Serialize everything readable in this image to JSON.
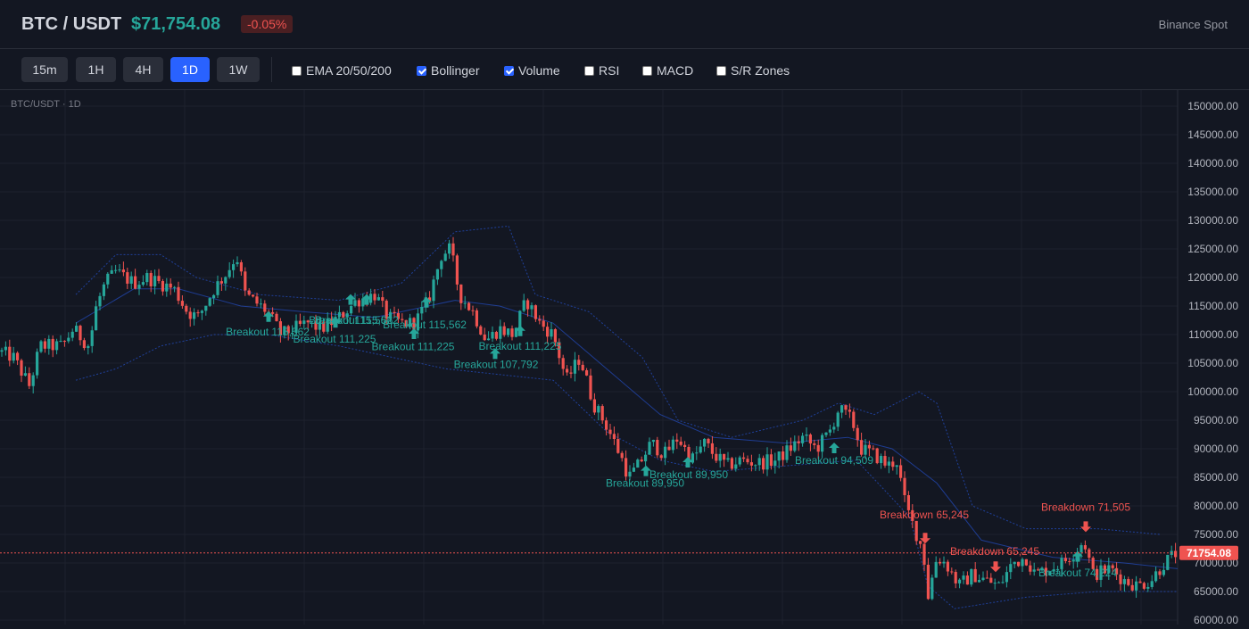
{
  "header": {
    "symbol": "BTC / USDT",
    "price": "$71,754.08",
    "change": "-0.05%",
    "exchange": "Binance Spot"
  },
  "toolbar": {
    "timeframes": [
      {
        "label": "15m",
        "active": false
      },
      {
        "label": "1H",
        "active": false
      },
      {
        "label": "4H",
        "active": false
      },
      {
        "label": "1D",
        "active": true
      },
      {
        "label": "1W",
        "active": false
      }
    ],
    "indicators": [
      {
        "label": "EMA 20/50/200",
        "checked": false
      },
      {
        "label": "Bollinger",
        "checked": true
      },
      {
        "label": "Volume",
        "checked": true
      },
      {
        "label": "RSI",
        "checked": false
      },
      {
        "label": "MACD",
        "checked": false
      },
      {
        "label": "S/R Zones",
        "checked": false
      }
    ]
  },
  "chart_label": "BTC/USDT · 1D",
  "colors": {
    "up": "#26a69a",
    "down": "#ef5350",
    "band": "#2962ff",
    "background": "#131722"
  },
  "chart_data": {
    "type": "candlestick",
    "title": "BTC/USDT · 1D",
    "ylim": [
      60000,
      152000
    ],
    "y_ticks": [
      "150000.00",
      "145000.00",
      "140000.00",
      "135000.00",
      "130000.00",
      "125000.00",
      "120000.00",
      "115000.00",
      "110000.00",
      "105000.00",
      "100000.00",
      "95000.00",
      "90000.00",
      "85000.00",
      "80000.00",
      "75000.00",
      "70000.00",
      "65000.00",
      "60000.00"
    ],
    "last_price": 71754.08,
    "last_price_label": "71754.08",
    "close_path": [
      [
        0,
        107000
      ],
      [
        15,
        106000
      ],
      [
        33,
        101000
      ],
      [
        45,
        108000
      ],
      [
        70,
        108000
      ],
      [
        82,
        111000
      ],
      [
        100,
        108000
      ],
      [
        108,
        115000
      ],
      [
        118,
        119000
      ],
      [
        130,
        121000
      ],
      [
        150,
        119000
      ],
      [
        165,
        120000
      ],
      [
        180,
        119000
      ],
      [
        195,
        118000
      ],
      [
        210,
        114000
      ],
      [
        222,
        113000
      ],
      [
        240,
        118000
      ],
      [
        255,
        121000
      ],
      [
        265,
        124000
      ],
      [
        275,
        117000
      ],
      [
        300,
        114000
      ],
      [
        315,
        110000
      ],
      [
        330,
        111000
      ],
      [
        345,
        112000
      ],
      [
        360,
        111000
      ],
      [
        380,
        113000
      ],
      [
        400,
        116000
      ],
      [
        420,
        117000
      ],
      [
        435,
        113000
      ],
      [
        450,
        112000
      ],
      [
        465,
        112000
      ],
      [
        480,
        116000
      ],
      [
        495,
        124000
      ],
      [
        505,
        125000
      ],
      [
        515,
        117000
      ],
      [
        530,
        114000
      ],
      [
        545,
        109000
      ],
      [
        560,
        111000
      ],
      [
        575,
        110000
      ],
      [
        590,
        116000
      ],
      [
        605,
        112000
      ],
      [
        620,
        110000
      ],
      [
        635,
        102000
      ],
      [
        650,
        106000
      ],
      [
        665,
        98000
      ],
      [
        680,
        94000
      ],
      [
        695,
        89000
      ],
      [
        705,
        85000
      ],
      [
        715,
        87000
      ],
      [
        730,
        91000
      ],
      [
        745,
        89000
      ],
      [
        760,
        92000
      ],
      [
        775,
        88000
      ],
      [
        790,
        91000
      ],
      [
        800,
        89000
      ],
      [
        815,
        87000
      ],
      [
        830,
        88000
      ],
      [
        850,
        87500
      ],
      [
        870,
        88000
      ],
      [
        885,
        90000
      ],
      [
        900,
        92000
      ],
      [
        915,
        90000
      ],
      [
        930,
        93000
      ],
      [
        940,
        97000
      ],
      [
        955,
        95000
      ],
      [
        965,
        90000
      ],
      [
        980,
        89000
      ],
      [
        995,
        87000
      ],
      [
        1005,
        88000
      ],
      [
        1015,
        80000
      ],
      [
        1025,
        76000
      ],
      [
        1035,
        72000
      ],
      [
        1040,
        64000
      ],
      [
        1050,
        71000
      ],
      [
        1060,
        70000
      ],
      [
        1075,
        66000
      ],
      [
        1090,
        68000
      ],
      [
        1105,
        67000
      ],
      [
        1120,
        66000
      ],
      [
        1135,
        70000
      ],
      [
        1150,
        71000
      ],
      [
        1160,
        68000
      ],
      [
        1175,
        69000
      ],
      [
        1190,
        70000
      ],
      [
        1205,
        72000
      ],
      [
        1215,
        74000
      ],
      [
        1225,
        68000
      ],
      [
        1245,
        69000
      ],
      [
        1260,
        67000
      ],
      [
        1275,
        66000
      ],
      [
        1290,
        67000
      ],
      [
        1305,
        70000
      ],
      [
        1320,
        72000
      ]
    ],
    "bollinger_upper": [
      [
        85,
        117000
      ],
      [
        130,
        124000
      ],
      [
        180,
        124000
      ],
      [
        220,
        120000
      ],
      [
        290,
        117000
      ],
      [
        380,
        116000
      ],
      [
        450,
        119000
      ],
      [
        510,
        128000
      ],
      [
        570,
        129000
      ],
      [
        600,
        117000
      ],
      [
        660,
        114000
      ],
      [
        720,
        106000
      ],
      [
        760,
        95000
      ],
      [
        820,
        92000
      ],
      [
        900,
        95000
      ],
      [
        940,
        98000
      ],
      [
        980,
        96000
      ],
      [
        1030,
        100000
      ],
      [
        1050,
        98000
      ],
      [
        1090,
        80000
      ],
      [
        1150,
        76000
      ],
      [
        1230,
        76000
      ],
      [
        1300,
        75000
      ]
    ],
    "bollinger_mid": [
      [
        85,
        112000
      ],
      [
        150,
        118000
      ],
      [
        200,
        118000
      ],
      [
        270,
        115000
      ],
      [
        340,
        114000
      ],
      [
        420,
        113000
      ],
      [
        510,
        116000
      ],
      [
        560,
        115000
      ],
      [
        620,
        112000
      ],
      [
        680,
        104000
      ],
      [
        740,
        96000
      ],
      [
        800,
        92000
      ],
      [
        880,
        91000
      ],
      [
        950,
        92000
      ],
      [
        1000,
        90000
      ],
      [
        1050,
        84000
      ],
      [
        1100,
        74000
      ],
      [
        1180,
        71000
      ],
      [
        1260,
        70000
      ],
      [
        1320,
        69000
      ]
    ],
    "bollinger_lower": [
      [
        85,
        102000
      ],
      [
        130,
        104000
      ],
      [
        180,
        108000
      ],
      [
        240,
        110000
      ],
      [
        300,
        110000
      ],
      [
        380,
        108000
      ],
      [
        440,
        106000
      ],
      [
        500,
        104000
      ],
      [
        560,
        103000
      ],
      [
        620,
        102000
      ],
      [
        680,
        93000
      ],
      [
        740,
        88000
      ],
      [
        800,
        86000
      ],
      [
        880,
        87000
      ],
      [
        960,
        88000
      ],
      [
        1020,
        78000
      ],
      [
        1040,
        66000
      ],
      [
        1070,
        62000
      ],
      [
        1150,
        64000
      ],
      [
        1230,
        65000
      ],
      [
        1320,
        65000
      ]
    ],
    "signals": [
      {
        "type": "breakout",
        "label": "Breakout 115,562",
        "bx": 301,
        "by": 113000,
        "lx": 300,
        "ly": 110500
      },
      {
        "type": "breakout",
        "label": "Breakout 111,225",
        "bx": 376,
        "by": 112000,
        "lx": 375,
        "ly": 109200
      },
      {
        "type": "breakout",
        "label": "Breakout 115,562",
        "bx": 393,
        "by": 116000,
        "lx": 393,
        "ly": 112500
      },
      {
        "type": "breakout",
        "label": "Breakout 115,562",
        "bx": 411,
        "by": 116000,
        "lx": 400,
        "ly": 112500
      },
      {
        "type": "breakout",
        "label": "Breakout 111,225",
        "bx": 464,
        "by": 110000,
        "lx": 463,
        "ly": 107900
      },
      {
        "type": "breakout",
        "label": "Breakout 115,562",
        "bx": 478,
        "by": 115500,
        "lx": 476,
        "ly": 111700
      },
      {
        "type": "breakout",
        "label": "Breakout 107,792",
        "bx": 555,
        "by": 106500,
        "lx": 556,
        "ly": 104800
      },
      {
        "type": "breakout",
        "label": "Breakout 111,225",
        "bx": 583,
        "by": 110500,
        "lx": 583,
        "ly": 108000
      },
      {
        "type": "breakout",
        "label": "Breakout 89,950",
        "bx": 724,
        "by": 86000,
        "lx": 723,
        "ly": 84000
      },
      {
        "type": "breakout",
        "label": "Breakout 89,950",
        "bx": 771,
        "by": 87500,
        "lx": 772,
        "ly": 85500
      },
      {
        "type": "breakout",
        "label": "Breakout 94,509",
        "bx": 935,
        "by": 90000,
        "lx": 935,
        "ly": 88000
      },
      {
        "type": "breakdown",
        "label": "Breakdown 65,245",
        "bx": 1037,
        "by": 74500,
        "lx": 1036,
        "ly": 78400
      },
      {
        "type": "breakdown",
        "label": "Breakdown 65,245",
        "bx": 1116,
        "by": 69500,
        "lx": 1115,
        "ly": 72000
      },
      {
        "type": "breakdown",
        "label": "Breakdown 71,505",
        "bx": 1217,
        "by": 76500,
        "lx": 1217,
        "ly": 79800
      },
      {
        "type": "breakout",
        "label": "Breakout 74,224",
        "bx": 1208,
        "by": 71000,
        "lx": 1208,
        "ly": 68300
      }
    ]
  }
}
